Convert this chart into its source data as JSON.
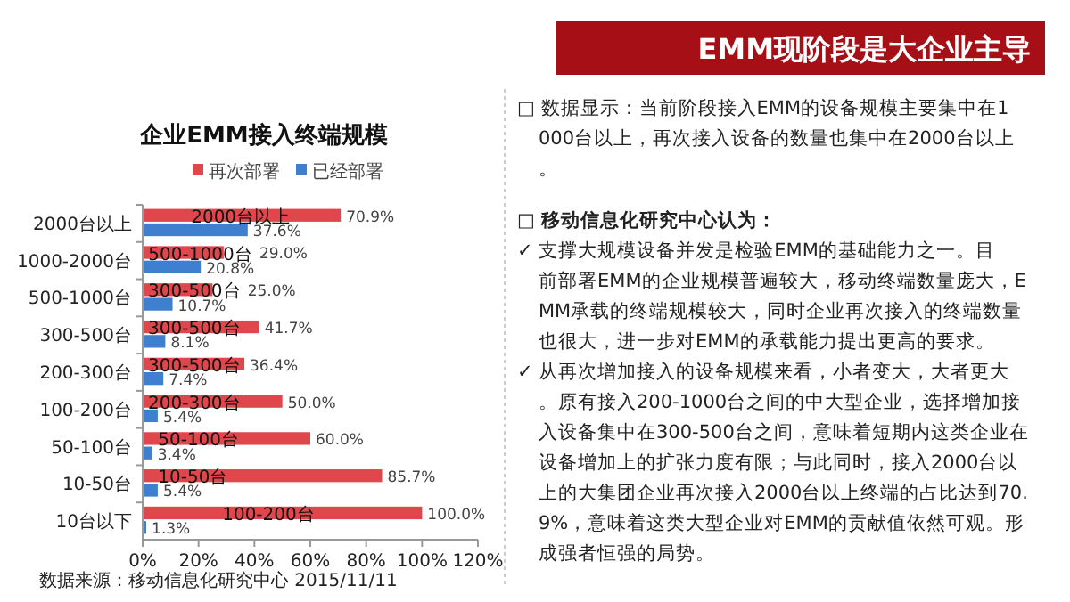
{
  "chart_data": {
    "type": "bar",
    "orientation": "horizontal",
    "title": "企业EMM接入终端规模",
    "categories": [
      "2000台以上",
      "1000-2000台",
      "500-1000台",
      "300-500台",
      "200-300台",
      "100-200台",
      "50-100台",
      "10-50台",
      "10台以下"
    ],
    "series": [
      {
        "name": "再次部署",
        "color": "#e0474c",
        "values": [
          70.9,
          29.0,
          25.0,
          41.7,
          36.4,
          50.0,
          60.0,
          85.7,
          100.0
        ],
        "value_labels": [
          "70.9%",
          "29.0%",
          "25.0%",
          "41.7%",
          "36.4%",
          "50.0%",
          "60.0%",
          "85.7%",
          "100.0%"
        ]
      },
      {
        "name": "已经部署",
        "color": "#3f7fd0",
        "values": [
          37.6,
          20.8,
          10.7,
          8.1,
          7.4,
          5.4,
          3.4,
          5.4,
          1.3
        ],
        "value_labels": [
          "37.6%",
          "20.8%",
          "10.7%",
          "8.1%",
          "7.4%",
          "5.4%",
          "3.4%",
          "5.4%",
          "1.3%"
        ]
      }
    ],
    "xlim": [
      0,
      120
    ],
    "xticks": [
      {
        "value": 0,
        "label": "0%"
      },
      {
        "value": 20,
        "label": "20%"
      },
      {
        "value": 40,
        "label": "40%"
      },
      {
        "value": 60,
        "label": "60%"
      },
      {
        "value": 80,
        "label": "80%"
      },
      {
        "value": 100,
        "label": "100%"
      },
      {
        "value": 120,
        "label": "120%"
      }
    ],
    "legend": "top",
    "grid": false,
    "annotations": [
      {
        "text": "2000台以上",
        "x": 35,
        "y": "2000台以上"
      },
      {
        "text": "500-1000台",
        "x": 15,
        "y": "1000-2000台"
      },
      {
        "text": "300-500台",
        "x": 12,
        "y": "500-1000台"
      },
      {
        "text": "300-500台",
        "x": 12,
        "y": "300-500台"
      },
      {
        "text": "300-500台",
        "x": 12,
        "y": "200-300台"
      },
      {
        "text": "200-300台",
        "x": 16,
        "y": "100-200台"
      },
      {
        "text": "50-100台",
        "x": 20,
        "y": "50-100台"
      },
      {
        "text": "10-50台",
        "x": 18,
        "y": "10-50台"
      },
      {
        "text": "100-200台",
        "x": 45,
        "y": "10台以下"
      },
      "EMM现阶段是大企业主导",
      "□ 数据显示：当前阶段接入EMM的设备规模主要集中在1000台以上，再次接入设备的数量也集中在2000台以上。",
      "□ 移动信息化研究中心认为：",
      "✓ 支撑大规模设备并发是检验EMM的基础能力之一。目前部署EMM的企业规模普遍较大，移动终端数量庞大，EMM承载的终端规模较大，同时企业再次接入的终端数量也很大，进一步对EMM的承载能力提出更高的要求。",
      "✓ 从再次增加接入的设备规模来看，小者变大，大者更大。原有接入200-1000台之间的中大型企业，选择增加接入设备集中在300-500台之间，意味着短期内这类企业在设备增加上的扩张力度有限；与此同时，接入2000台以上的大集团企业再次接入2000台以上终端的占比达到70.9%，意味着这类大型企业对EMM的贡献值依然可观。形成强者恒强的局势。",
      "数据来源：移动信息化研究中心 2015/11/11"
    ]
  }
}
